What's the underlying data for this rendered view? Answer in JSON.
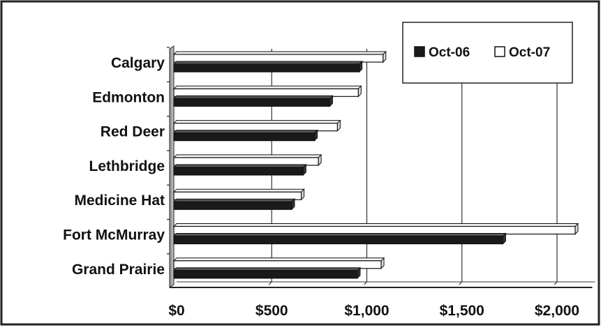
{
  "chart_data": {
    "type": "bar",
    "orientation": "horizontal",
    "categories": [
      "Calgary",
      "Edmonton",
      "Red Deer",
      "Lethbridge",
      "Medicine Hat",
      "Fort McMurray",
      "Grand Prairie"
    ],
    "series": [
      {
        "name": "Oct-06",
        "values": [
          975,
          820,
          740,
          680,
          620,
          1730,
          965
        ]
      },
      {
        "name": "Oct-07",
        "values": [
          1100,
          970,
          860,
          760,
          670,
          2110,
          1090
        ]
      }
    ],
    "x_tick_labels": [
      "$0",
      "$500",
      "$1,000",
      "$1,500",
      "$2,000"
    ],
    "x_tick_values": [
      0,
      500,
      1000,
      1500,
      2000
    ],
    "xlim": [
      0,
      2200
    ],
    "grid": "vertical",
    "legend_position": "top-right",
    "colors": {
      "Oct-06": "#1a1a1a",
      "Oct-07": "#ffffff"
    }
  }
}
